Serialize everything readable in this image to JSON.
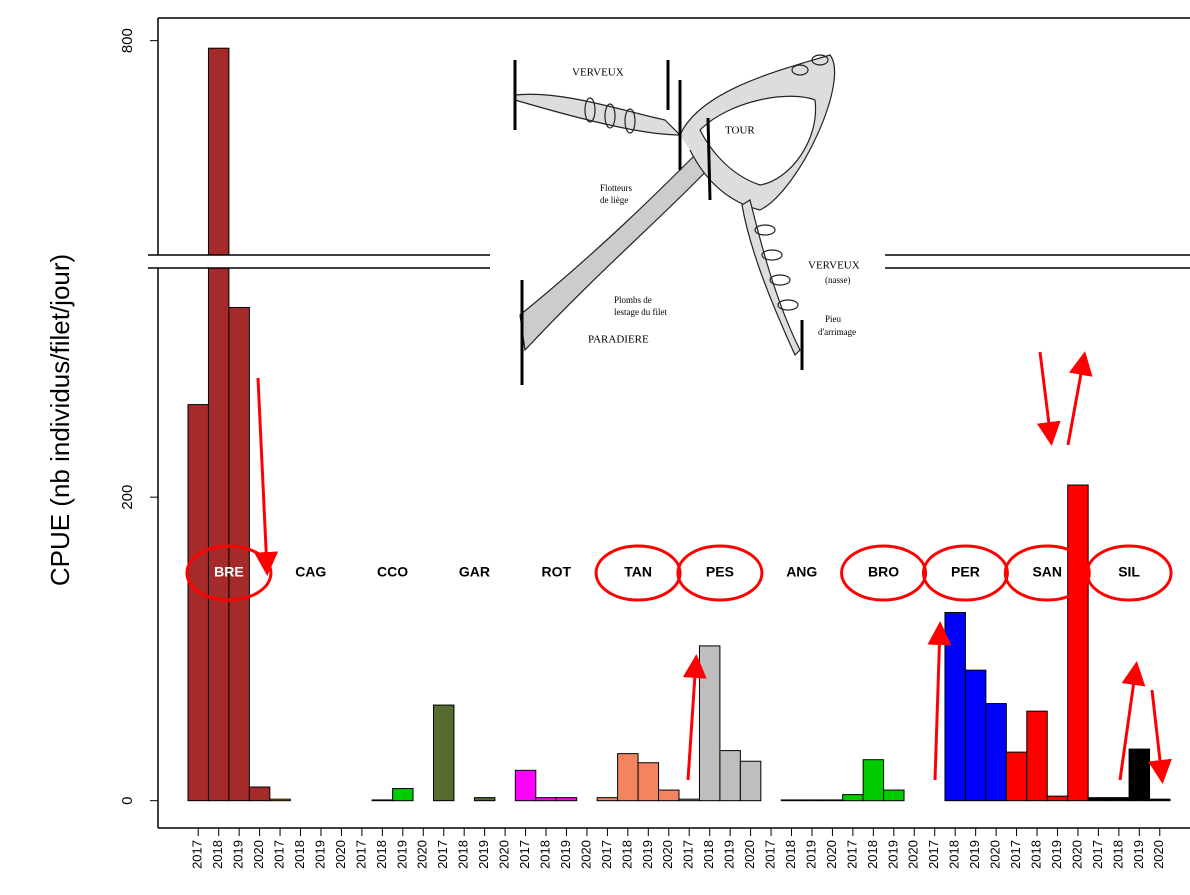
{
  "chart_data": {
    "type": "bar",
    "y_label": "CPUE (nb individus/filet/jour)",
    "categories": [
      "2017",
      "2018",
      "2019",
      "2020"
    ],
    "series": [
      {
        "name": "BRE",
        "color": "#a52a2a",
        "label_color": "#ffffff",
        "circled": true,
        "values": [
          261,
          795,
          325,
          9
        ]
      },
      {
        "name": "CAG",
        "color": "#ffa500",
        "values": [
          1,
          0,
          0,
          0
        ]
      },
      {
        "name": "CCO",
        "color": "#00cd00",
        "values": [
          0,
          0.5,
          8,
          0
        ]
      },
      {
        "name": "GAR",
        "color": "#556b2f",
        "values": [
          63,
          0,
          2,
          0
        ]
      },
      {
        "name": "ROT",
        "color": "#ff00ff",
        "values": [
          20,
          2,
          2,
          0
        ]
      },
      {
        "name": "TAN",
        "color": "#f4845f",
        "circled": true,
        "values": [
          2,
          31,
          25,
          7
        ]
      },
      {
        "name": "PES",
        "color": "#bebebe",
        "circled": true,
        "values": [
          1,
          102,
          33,
          26
        ]
      },
      {
        "name": "ANG",
        "color": "#8b4513",
        "values": [
          0,
          0.5,
          0.5,
          0.5
        ]
      },
      {
        "name": "BRO",
        "color": "#00cd00",
        "circled": true,
        "values": [
          4,
          27,
          7,
          0
        ]
      },
      {
        "name": "PER",
        "color": "#0000ff",
        "circled": true,
        "values": [
          0,
          124,
          86,
          64
        ]
      },
      {
        "name": "SAN",
        "color": "#ff0000",
        "circled": true,
        "values": [
          32,
          59,
          3,
          208
        ]
      },
      {
        "name": "SIL",
        "color": "#000000",
        "circled": true,
        "values": [
          2,
          2,
          34,
          1
        ]
      }
    ],
    "ylim": [
      -18,
      815
    ],
    "y_break": [
      351,
      658
    ],
    "yticks": [
      0,
      200,
      800
    ],
    "inset": {
      "labels": [
        "VERVEUX",
        "TOUR",
        "Flotteurs",
        "de liège",
        "Plombs de",
        "lestage du filet",
        "PARADIERE",
        "VERVEUX",
        "(nasse)",
        "Pieu",
        "d'arrimage"
      ]
    }
  }
}
